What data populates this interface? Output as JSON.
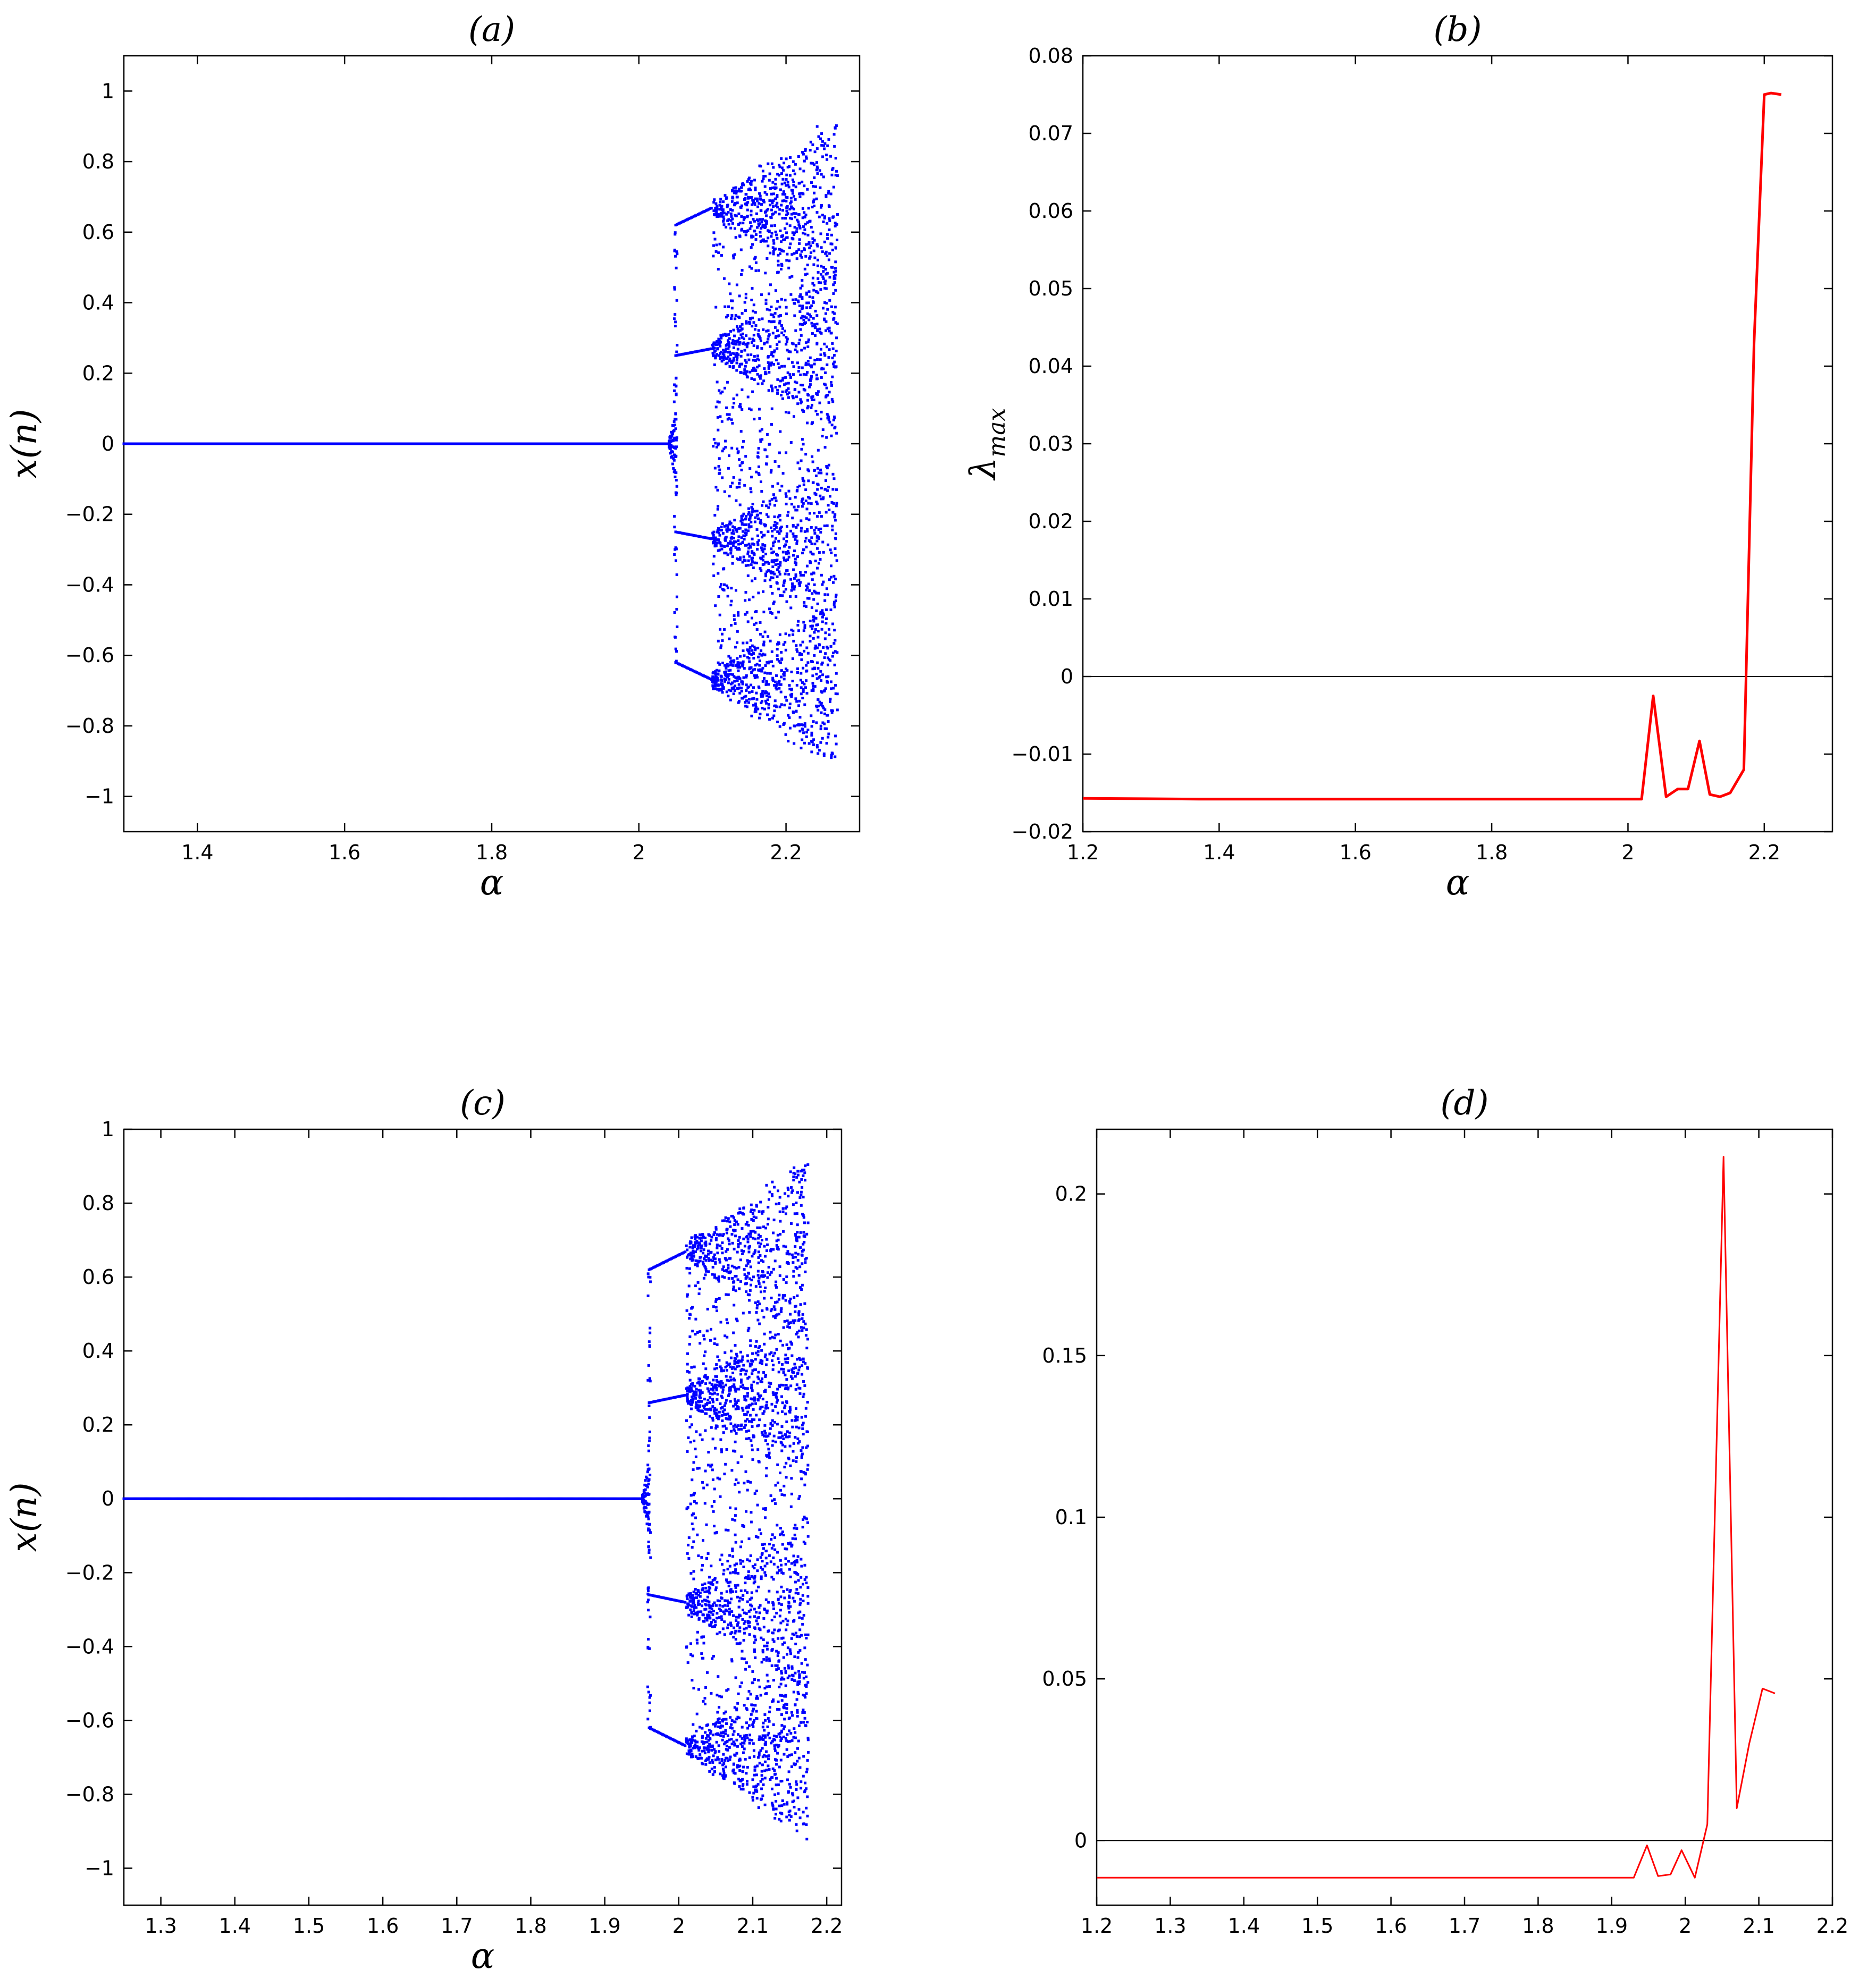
{
  "chart_data": [
    {
      "id": "a",
      "type": "scatter",
      "title": "(a)",
      "xlabel": "α",
      "ylabel": "x(n)",
      "xlim": [
        1.3,
        2.3
      ],
      "ylim": [
        -1.1,
        1.1
      ],
      "xticks": [
        1.4,
        1.6,
        1.8,
        2,
        2.2
      ],
      "xtick_labels": [
        "1.4",
        "1.6",
        "1.8",
        "2",
        "2.2"
      ],
      "yticks": [
        -1,
        -0.8,
        -0.6,
        -0.4,
        -0.2,
        0,
        0.2,
        0.4,
        0.6,
        0.8,
        1
      ],
      "ytick_labels": [
        "−1",
        "−0.8",
        "−0.6",
        "−0.4",
        "−0.2",
        "0",
        "0.2",
        "0.4",
        "0.6",
        "0.8",
        "1"
      ],
      "color": "#0000ff",
      "bifurcation": {
        "alpha_start": 1.3,
        "alpha_onset": 2.04,
        "alpha_split": 2.05,
        "alpha_band": 2.1,
        "alpha_end": 2.27,
        "branches": [
          0.62,
          0.25,
          -0.25,
          -0.62
        ],
        "max_amplitude": 0.94
      }
    },
    {
      "id": "b",
      "type": "line",
      "title": "(b)",
      "xlabel": "α",
      "ylabel": "λ",
      "ylabel_subscript": "max",
      "xlim": [
        1.2,
        2.3
      ],
      "ylim": [
        -0.02,
        0.08
      ],
      "xticks": [
        1.2,
        1.4,
        1.6,
        1.8,
        2,
        2.2
      ],
      "xtick_labels": [
        "1.2",
        "1.4",
        "1.6",
        "1.8",
        "2",
        "2.2"
      ],
      "yticks": [
        -0.02,
        -0.01,
        0,
        0.01,
        0.02,
        0.03,
        0.04,
        0.05,
        0.06,
        0.07,
        0.08
      ],
      "ytick_labels": [
        "−0.02",
        "−0.01",
        "0",
        "0.01",
        "0.02",
        "0.03",
        "0.04",
        "0.05",
        "0.06",
        "0.07",
        "0.08"
      ],
      "color": "#ff0000",
      "zero_line": true,
      "x": [
        1.2,
        1.37,
        1.6,
        1.8,
        2.0,
        2.02,
        2.037,
        2.056,
        2.073,
        2.088,
        2.105,
        2.12,
        2.135,
        2.15,
        2.17,
        2.185,
        2.2,
        2.21,
        2.225
      ],
      "y": [
        -0.0157,
        -0.0158,
        -0.0158,
        -0.0158,
        -0.0158,
        -0.0158,
        -0.0025,
        -0.0155,
        -0.0145,
        -0.0145,
        -0.0083,
        -0.0152,
        -0.0155,
        -0.015,
        -0.012,
        0.043,
        0.075,
        0.0752,
        0.075
      ]
    },
    {
      "id": "c",
      "type": "scatter",
      "title": "(c)",
      "xlabel": "α",
      "ylabel": "x(n)",
      "xlim": [
        1.25,
        2.22
      ],
      "ylim": [
        -1.1,
        1.0
      ],
      "xticks": [
        1.3,
        1.4,
        1.5,
        1.6,
        1.7,
        1.8,
        1.9,
        2,
        2.1,
        2.2
      ],
      "xtick_labels": [
        "1.3",
        "1.4",
        "1.5",
        "1.6",
        "1.7",
        "1.8",
        "1.9",
        "2",
        "2.1",
        "2.2"
      ],
      "yticks": [
        -1,
        -0.8,
        -0.6,
        -0.4,
        -0.2,
        0,
        0.2,
        0.4,
        0.6,
        0.8,
        1
      ],
      "ytick_labels": [
        "−1",
        "−0.8",
        "−0.6",
        "−0.4",
        "−0.2",
        "0",
        "0.2",
        "0.4",
        "0.6",
        "0.8",
        "1"
      ],
      "color": "#0000ff",
      "bifurcation": {
        "alpha_start": 1.25,
        "alpha_onset": 1.95,
        "alpha_split": 1.96,
        "alpha_band": 2.01,
        "alpha_end": 2.175,
        "branches": [
          0.62,
          0.26,
          -0.26,
          -0.62
        ],
        "max_amplitude": 0.93
      }
    },
    {
      "id": "d",
      "type": "line",
      "title": "(d)",
      "xlabel": "",
      "ylabel": "",
      "xlim": [
        1.2,
        2.2
      ],
      "ylim": [
        -0.02,
        0.22
      ],
      "xticks": [
        1.2,
        1.3,
        1.4,
        1.5,
        1.6,
        1.7,
        1.8,
        1.9,
        2,
        2.1,
        2.2
      ],
      "xtick_labels": [
        "1.2",
        "1.3",
        "1.4",
        "1.5",
        "1.6",
        "1.7",
        "1.8",
        "1.9",
        "2",
        "2.1",
        "2.2"
      ],
      "yticks": [
        0,
        0.05,
        0.1,
        0.15,
        0.2
      ],
      "ytick_labels": [
        "0",
        "0.05",
        "0.1",
        "0.15",
        "0.2"
      ],
      "color": "#ff0000",
      "zero_line": true,
      "x": [
        1.2,
        1.5,
        1.8,
        1.93,
        1.948,
        1.963,
        1.98,
        1.995,
        2.013,
        2.03,
        2.052,
        2.07,
        2.087,
        2.105,
        2.122
      ],
      "y": [
        -0.0115,
        -0.0115,
        -0.0115,
        -0.0115,
        -0.0015,
        -0.011,
        -0.0105,
        -0.003,
        -0.0115,
        0.005,
        0.2115,
        0.01,
        0.03,
        0.047,
        0.0455
      ]
    }
  ]
}
